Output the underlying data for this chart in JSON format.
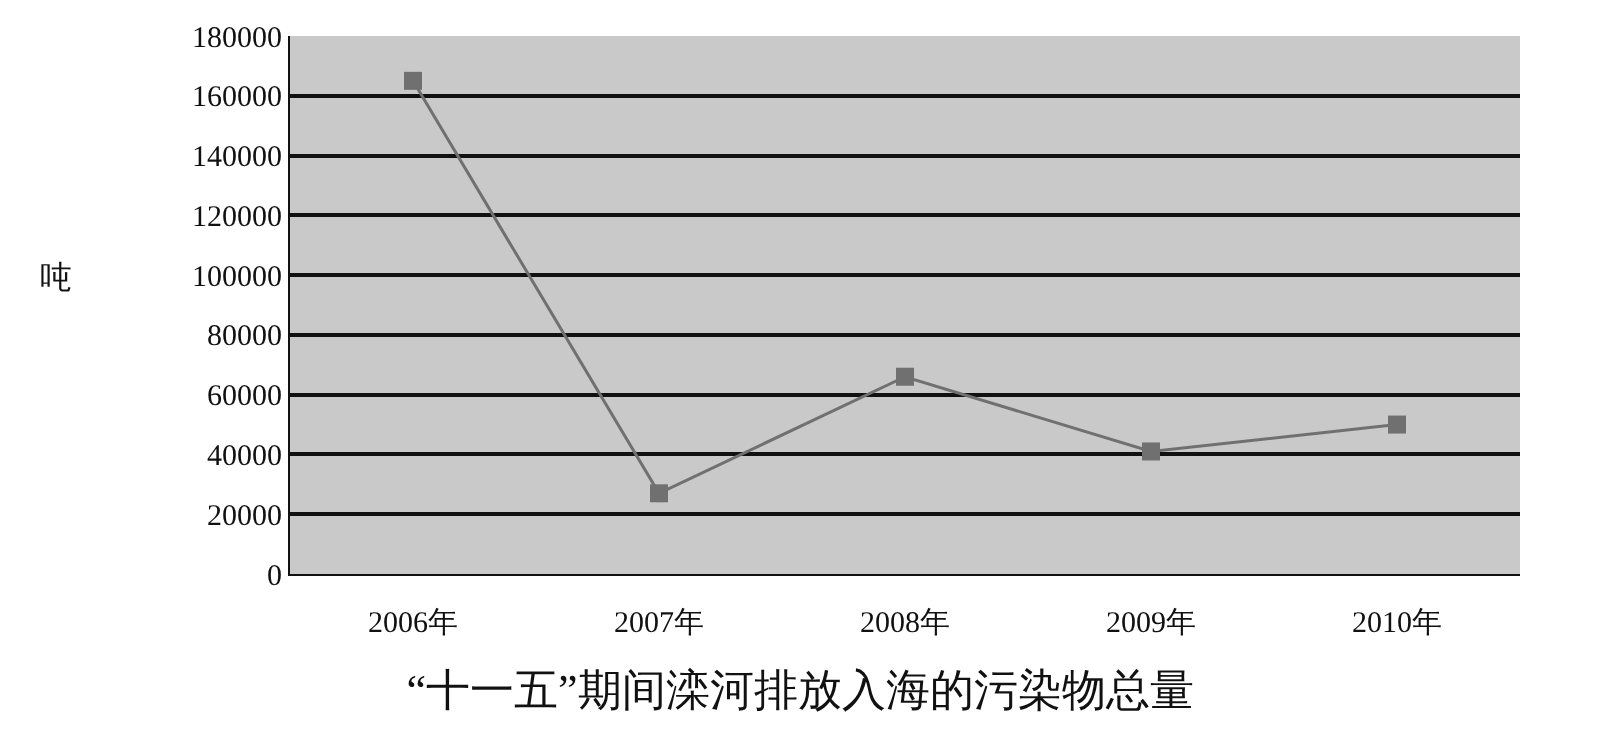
{
  "chart_data": {
    "type": "line",
    "title": "“十一五”期间滦河排放入海的污染物总量",
    "ylabel": "吨",
    "categories": [
      "2006年",
      "2007年",
      "2008年",
      "2009年",
      "2010年"
    ],
    "series": [
      {
        "color": "#707070",
        "values": [
          165000,
          27000,
          66000,
          41000,
          50000
        ]
      }
    ],
    "ylim": [
      0,
      180000
    ],
    "yticks": [
      0,
      20000,
      40000,
      60000,
      80000,
      100000,
      120000,
      140000,
      160000,
      180000
    ],
    "grid": "y",
    "marker": "square"
  }
}
